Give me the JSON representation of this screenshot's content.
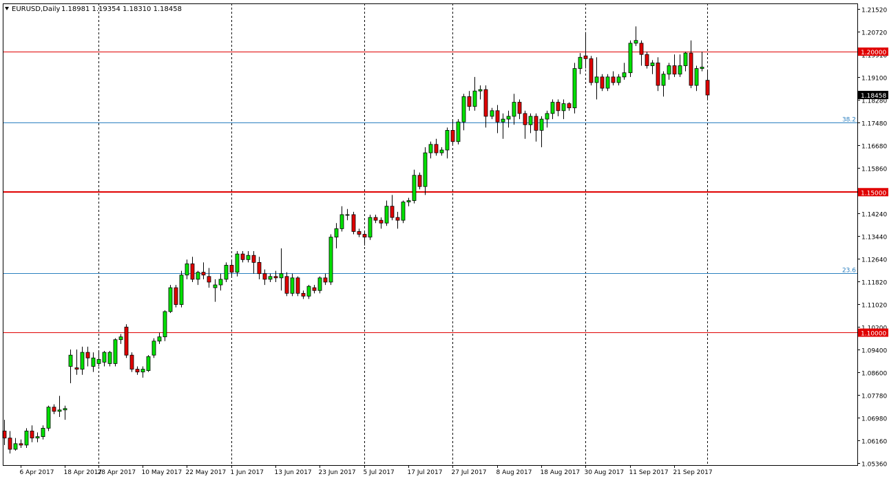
{
  "header": {
    "symbol": "EURUSD,Daily",
    "ohlc": "1.18981 1.19354 1.18310 1.18458"
  },
  "chart_data": {
    "type": "candlestick",
    "symbol": "EURUSD",
    "timeframe": "Daily",
    "ylim": [
      1.0536,
      1.2152
    ],
    "y_ticks": [
      "1.21520",
      "1.20720",
      "1.19910",
      "1.19100",
      "1.18280",
      "1.17480",
      "1.16680",
      "1.15860",
      "1.15060",
      "1.14240",
      "1.13440",
      "1.12640",
      "1.11820",
      "1.11020",
      "1.10200",
      "1.09400",
      "1.08600",
      "1.07780",
      "1.06980",
      "1.06160",
      "1.05360"
    ],
    "x_ticks": [
      "6 Apr 2017",
      "18 Apr 2017",
      "28 Apr 2017",
      "10 May 2017",
      "22 May 2017",
      "1 Jun 2017",
      "13 Jun 2017",
      "23 Jun 2017",
      "5 Jul 2017",
      "17 Jul 2017",
      "27 Jul 2017",
      "8 Aug 2017",
      "18 Aug 2017",
      "30 Aug 2017",
      "11 Sep 2017",
      "21 Sep 2017"
    ],
    "period_separators": [
      "28 Apr 2017",
      "1 Jun 2017",
      "5 Jul 2017",
      "27 Jul 2017",
      "30 Aug 2017",
      "29 Sep 2017"
    ],
    "horizontal_levels": [
      {
        "price": 1.2,
        "label": "1.20000",
        "color": "#e00000",
        "weight": "thin"
      },
      {
        "price": 1.15,
        "label": "1.15000",
        "color": "#e00000",
        "weight": "thick"
      },
      {
        "price": 1.1,
        "label": "1.10000",
        "color": "#e00000",
        "weight": "thin"
      }
    ],
    "fib_levels": [
      {
        "price": 1.1749,
        "label": "38.2",
        "color": "#2a7fbf"
      },
      {
        "price": 1.1213,
        "label": "23.6",
        "color": "#2a7fbf"
      }
    ],
    "current_price": {
      "price": 1.18458,
      "label": "1.18458"
    },
    "colors": {
      "bull": "#00e000",
      "bear": "#e00000",
      "wick": "#000000",
      "grid": "#000000"
    },
    "candles": [
      {
        "date": "2017-04-03",
        "o": 1.065,
        "h": 1.069,
        "l": 1.06,
        "c": 1.0625
      },
      {
        "date": "2017-04-04",
        "o": 1.0625,
        "h": 1.065,
        "l": 1.057,
        "c": 1.0585
      },
      {
        "date": "2017-04-05",
        "o": 1.0585,
        "h": 1.0625,
        "l": 1.058,
        "c": 1.0605
      },
      {
        "date": "2017-04-06",
        "o": 1.0605,
        "h": 1.062,
        "l": 1.059,
        "c": 1.06
      },
      {
        "date": "2017-04-07",
        "o": 1.06,
        "h": 1.066,
        "l": 1.059,
        "c": 1.065
      },
      {
        "date": "2017-04-10",
        "o": 1.065,
        "h": 1.067,
        "l": 1.061,
        "c": 1.0625
      },
      {
        "date": "2017-04-11",
        "o": 1.0625,
        "h": 1.0645,
        "l": 1.061,
        "c": 1.063
      },
      {
        "date": "2017-04-12",
        "o": 1.063,
        "h": 1.067,
        "l": 1.062,
        "c": 1.066
      },
      {
        "date": "2017-04-13",
        "o": 1.066,
        "h": 1.074,
        "l": 1.065,
        "c": 1.0735
      },
      {
        "date": "2017-04-14",
        "o": 1.0735,
        "h": 1.0745,
        "l": 1.071,
        "c": 1.072
      },
      {
        "date": "2017-04-17",
        "o": 1.072,
        "h": 1.0775,
        "l": 1.07,
        "c": 1.0725
      },
      {
        "date": "2017-04-18",
        "o": 1.0725,
        "h": 1.074,
        "l": 1.069,
        "c": 1.073
      },
      {
        "date": "2017-04-21",
        "o": 1.088,
        "h": 1.094,
        "l": 1.082,
        "c": 1.092
      },
      {
        "date": "2017-04-24",
        "o": 1.0875,
        "h": 1.094,
        "l": 1.085,
        "c": 1.087
      },
      {
        "date": "2017-04-25",
        "o": 1.087,
        "h": 1.095,
        "l": 1.085,
        "c": 1.093
      },
      {
        "date": "2017-04-26",
        "o": 1.093,
        "h": 1.095,
        "l": 1.088,
        "c": 1.091
      },
      {
        "date": "2017-04-27",
        "o": 1.088,
        "h": 1.093,
        "l": 1.086,
        "c": 1.091
      },
      {
        "date": "2017-04-28",
        "o": 1.089,
        "h": 1.0935,
        "l": 1.088,
        "c": 1.0905
      },
      {
        "date": "2017-05-01",
        "o": 1.0895,
        "h": 1.0935,
        "l": 1.088,
        "c": 1.093
      },
      {
        "date": "2017-05-02",
        "o": 1.089,
        "h": 1.0935,
        "l": 1.088,
        "c": 1.093
      },
      {
        "date": "2017-05-03",
        "o": 1.089,
        "h": 1.098,
        "l": 1.088,
        "c": 1.0975
      },
      {
        "date": "2017-05-04",
        "o": 1.0975,
        "h": 1.0995,
        "l": 1.096,
        "c": 1.0985
      },
      {
        "date": "2017-05-05",
        "o": 1.102,
        "h": 1.103,
        "l": 1.091,
        "c": 1.092
      },
      {
        "date": "2017-05-08",
        "o": 1.092,
        "h": 1.093,
        "l": 1.086,
        "c": 1.087
      },
      {
        "date": "2017-05-09",
        "o": 1.087,
        "h": 1.088,
        "l": 1.085,
        "c": 1.086
      },
      {
        "date": "2017-05-10",
        "o": 1.086,
        "h": 1.088,
        "l": 1.084,
        "c": 1.087
      },
      {
        "date": "2017-05-11",
        "o": 1.0865,
        "h": 1.092,
        "l": 1.086,
        "c": 1.0915
      },
      {
        "date": "2017-05-12",
        "o": 1.092,
        "h": 1.098,
        "l": 1.091,
        "c": 1.097
      },
      {
        "date": "2017-05-15",
        "o": 1.097,
        "h": 1.1,
        "l": 1.096,
        "c": 1.0985
      },
      {
        "date": "2017-05-16",
        "o": 1.0985,
        "h": 1.108,
        "l": 1.097,
        "c": 1.1075
      },
      {
        "date": "2017-05-17",
        "o": 1.1075,
        "h": 1.117,
        "l": 1.107,
        "c": 1.116
      },
      {
        "date": "2017-05-18",
        "o": 1.116,
        "h": 1.117,
        "l": 1.109,
        "c": 1.11
      },
      {
        "date": "2017-05-19",
        "o": 1.11,
        "h": 1.122,
        "l": 1.109,
        "c": 1.1205
      },
      {
        "date": "2017-05-22",
        "o": 1.1205,
        "h": 1.126,
        "l": 1.119,
        "c": 1.1245
      },
      {
        "date": "2017-05-23",
        "o": 1.1245,
        "h": 1.127,
        "l": 1.118,
        "c": 1.119
      },
      {
        "date": "2017-05-24",
        "o": 1.119,
        "h": 1.122,
        "l": 1.117,
        "c": 1.1215
      },
      {
        "date": "2017-05-25",
        "o": 1.1215,
        "h": 1.125,
        "l": 1.119,
        "c": 1.1205
      },
      {
        "date": "2017-05-26",
        "o": 1.12,
        "h": 1.123,
        "l": 1.116,
        "c": 1.118
      },
      {
        "date": "2017-05-29",
        "o": 1.116,
        "h": 1.119,
        "l": 1.111,
        "c": 1.117
      },
      {
        "date": "2017-05-30",
        "o": 1.117,
        "h": 1.121,
        "l": 1.115,
        "c": 1.119
      },
      {
        "date": "2017-05-31",
        "o": 1.119,
        "h": 1.125,
        "l": 1.118,
        "c": 1.124
      },
      {
        "date": "2017-06-01",
        "o": 1.124,
        "h": 1.126,
        "l": 1.12,
        "c": 1.1215
      },
      {
        "date": "2017-06-02",
        "o": 1.1215,
        "h": 1.129,
        "l": 1.12,
        "c": 1.128
      },
      {
        "date": "2017-06-05",
        "o": 1.128,
        "h": 1.129,
        "l": 1.125,
        "c": 1.126
      },
      {
        "date": "2017-06-06",
        "o": 1.126,
        "h": 1.129,
        "l": 1.125,
        "c": 1.1275
      },
      {
        "date": "2017-06-07",
        "o": 1.1275,
        "h": 1.129,
        "l": 1.121,
        "c": 1.125
      },
      {
        "date": "2017-06-08",
        "o": 1.125,
        "h": 1.127,
        "l": 1.119,
        "c": 1.121
      },
      {
        "date": "2017-06-09",
        "o": 1.121,
        "h": 1.1225,
        "l": 1.117,
        "c": 1.119
      },
      {
        "date": "2017-06-12",
        "o": 1.119,
        "h": 1.121,
        "l": 1.118,
        "c": 1.12
      },
      {
        "date": "2017-06-13",
        "o": 1.12,
        "h": 1.122,
        "l": 1.118,
        "c": 1.1195
      },
      {
        "date": "2017-06-14",
        "o": 1.1195,
        "h": 1.13,
        "l": 1.115,
        "c": 1.121
      },
      {
        "date": "2017-06-15",
        "o": 1.12,
        "h": 1.1215,
        "l": 1.113,
        "c": 1.114
      },
      {
        "date": "2017-06-16",
        "o": 1.114,
        "h": 1.121,
        "l": 1.113,
        "c": 1.1195
      },
      {
        "date": "2017-06-19",
        "o": 1.1195,
        "h": 1.12,
        "l": 1.113,
        "c": 1.114
      },
      {
        "date": "2017-06-20",
        "o": 1.114,
        "h": 1.115,
        "l": 1.112,
        "c": 1.113
      },
      {
        "date": "2017-06-21",
        "o": 1.113,
        "h": 1.117,
        "l": 1.112,
        "c": 1.1165
      },
      {
        "date": "2017-06-22",
        "o": 1.116,
        "h": 1.117,
        "l": 1.114,
        "c": 1.115
      },
      {
        "date": "2017-06-23",
        "o": 1.115,
        "h": 1.12,
        "l": 1.114,
        "c": 1.1195
      },
      {
        "date": "2017-06-26",
        "o": 1.1195,
        "h": 1.121,
        "l": 1.117,
        "c": 1.118
      },
      {
        "date": "2017-06-27",
        "o": 1.118,
        "h": 1.135,
        "l": 1.117,
        "c": 1.134
      },
      {
        "date": "2017-06-28",
        "o": 1.134,
        "h": 1.139,
        "l": 1.13,
        "c": 1.137
      },
      {
        "date": "2017-06-29",
        "o": 1.137,
        "h": 1.145,
        "l": 1.136,
        "c": 1.142
      },
      {
        "date": "2017-06-30",
        "o": 1.142,
        "h": 1.144,
        "l": 1.14,
        "c": 1.142
      },
      {
        "date": "2017-07-03",
        "o": 1.142,
        "h": 1.143,
        "l": 1.135,
        "c": 1.136
      },
      {
        "date": "2017-07-04",
        "o": 1.136,
        "h": 1.137,
        "l": 1.134,
        "c": 1.135
      },
      {
        "date": "2017-07-05",
        "o": 1.135,
        "h": 1.136,
        "l": 1.131,
        "c": 1.134
      },
      {
        "date": "2017-07-06",
        "o": 1.134,
        "h": 1.142,
        "l": 1.133,
        "c": 1.141
      },
      {
        "date": "2017-07-07",
        "o": 1.141,
        "h": 1.142,
        "l": 1.139,
        "c": 1.14
      },
      {
        "date": "2017-07-10",
        "o": 1.14,
        "h": 1.141,
        "l": 1.137,
        "c": 1.139
      },
      {
        "date": "2017-07-11",
        "o": 1.139,
        "h": 1.147,
        "l": 1.138,
        "c": 1.145
      },
      {
        "date": "2017-07-12",
        "o": 1.145,
        "h": 1.149,
        "l": 1.14,
        "c": 1.141
      },
      {
        "date": "2017-07-13",
        "o": 1.141,
        "h": 1.143,
        "l": 1.137,
        "c": 1.14
      },
      {
        "date": "2017-07-14",
        "o": 1.14,
        "h": 1.147,
        "l": 1.139,
        "c": 1.1465
      },
      {
        "date": "2017-07-17",
        "o": 1.1465,
        "h": 1.148,
        "l": 1.145,
        "c": 1.147
      },
      {
        "date": "2017-07-18",
        "o": 1.147,
        "h": 1.158,
        "l": 1.146,
        "c": 1.156
      },
      {
        "date": "2017-07-19",
        "o": 1.156,
        "h": 1.157,
        "l": 1.151,
        "c": 1.152
      },
      {
        "date": "2017-07-20",
        "o": 1.152,
        "h": 1.166,
        "l": 1.149,
        "c": 1.164
      },
      {
        "date": "2017-07-21",
        "o": 1.164,
        "h": 1.168,
        "l": 1.162,
        "c": 1.167
      },
      {
        "date": "2017-07-24",
        "o": 1.167,
        "h": 1.169,
        "l": 1.163,
        "c": 1.164
      },
      {
        "date": "2017-07-25",
        "o": 1.164,
        "h": 1.166,
        "l": 1.163,
        "c": 1.165
      },
      {
        "date": "2017-07-26",
        "o": 1.165,
        "h": 1.173,
        "l": 1.162,
        "c": 1.172
      },
      {
        "date": "2017-07-27",
        "o": 1.172,
        "h": 1.176,
        "l": 1.167,
        "c": 1.168
      },
      {
        "date": "2017-07-28",
        "o": 1.168,
        "h": 1.176,
        "l": 1.167,
        "c": 1.175
      },
      {
        "date": "2017-07-31",
        "o": 1.175,
        "h": 1.185,
        "l": 1.172,
        "c": 1.184
      },
      {
        "date": "2017-08-01",
        "o": 1.184,
        "h": 1.186,
        "l": 1.179,
        "c": 1.1805
      },
      {
        "date": "2017-08-02",
        "o": 1.1805,
        "h": 1.191,
        "l": 1.179,
        "c": 1.186
      },
      {
        "date": "2017-08-03",
        "o": 1.186,
        "h": 1.188,
        "l": 1.183,
        "c": 1.1865
      },
      {
        "date": "2017-08-04",
        "o": 1.1865,
        "h": 1.188,
        "l": 1.173,
        "c": 1.177
      },
      {
        "date": "2017-08-07",
        "o": 1.177,
        "h": 1.18,
        "l": 1.176,
        "c": 1.179
      },
      {
        "date": "2017-08-08",
        "o": 1.179,
        "h": 1.181,
        "l": 1.171,
        "c": 1.175
      },
      {
        "date": "2017-08-09",
        "o": 1.175,
        "h": 1.178,
        "l": 1.169,
        "c": 1.176
      },
      {
        "date": "2017-08-10",
        "o": 1.176,
        "h": 1.179,
        "l": 1.173,
        "c": 1.177
      },
      {
        "date": "2017-08-11",
        "o": 1.177,
        "h": 1.185,
        "l": 1.174,
        "c": 1.182
      },
      {
        "date": "2017-08-14",
        "o": 1.182,
        "h": 1.183,
        "l": 1.176,
        "c": 1.178
      },
      {
        "date": "2017-08-15",
        "o": 1.178,
        "h": 1.179,
        "l": 1.169,
        "c": 1.174
      },
      {
        "date": "2017-08-16",
        "o": 1.174,
        "h": 1.178,
        "l": 1.171,
        "c": 1.177
      },
      {
        "date": "2017-08-17",
        "o": 1.177,
        "h": 1.178,
        "l": 1.168,
        "c": 1.172
      },
      {
        "date": "2017-08-18",
        "o": 1.172,
        "h": 1.177,
        "l": 1.166,
        "c": 1.176
      },
      {
        "date": "2017-08-21",
        "o": 1.176,
        "h": 1.179,
        "l": 1.173,
        "c": 1.178
      },
      {
        "date": "2017-08-22",
        "o": 1.178,
        "h": 1.183,
        "l": 1.176,
        "c": 1.182
      },
      {
        "date": "2017-08-23",
        "o": 1.182,
        "h": 1.183,
        "l": 1.177,
        "c": 1.179
      },
      {
        "date": "2017-08-24",
        "o": 1.179,
        "h": 1.183,
        "l": 1.176,
        "c": 1.1815
      },
      {
        "date": "2017-08-25",
        "o": 1.1815,
        "h": 1.182,
        "l": 1.179,
        "c": 1.18
      },
      {
        "date": "2017-08-28",
        "o": 1.18,
        "h": 1.196,
        "l": 1.178,
        "c": 1.194
      },
      {
        "date": "2017-08-29",
        "o": 1.194,
        "h": 1.1995,
        "l": 1.192,
        "c": 1.198
      },
      {
        "date": "2017-08-30",
        "o": 1.1985,
        "h": 1.207,
        "l": 1.194,
        "c": 1.1975
      },
      {
        "date": "2017-08-31",
        "o": 1.1975,
        "h": 1.1985,
        "l": 1.188,
        "c": 1.189
      },
      {
        "date": "2017-09-01",
        "o": 1.189,
        "h": 1.198,
        "l": 1.183,
        "c": 1.191
      },
      {
        "date": "2017-09-04",
        "o": 1.191,
        "h": 1.192,
        "l": 1.186,
        "c": 1.187
      },
      {
        "date": "2017-09-05",
        "o": 1.187,
        "h": 1.192,
        "l": 1.186,
        "c": 1.191
      },
      {
        "date": "2017-09-06",
        "o": 1.191,
        "h": 1.193,
        "l": 1.188,
        "c": 1.189
      },
      {
        "date": "2017-09-07",
        "o": 1.189,
        "h": 1.192,
        "l": 1.188,
        "c": 1.191
      },
      {
        "date": "2017-09-08",
        "o": 1.191,
        "h": 1.196,
        "l": 1.19,
        "c": 1.1925
      },
      {
        "date": "2017-09-11",
        "o": 1.1925,
        "h": 1.204,
        "l": 1.191,
        "c": 1.203
      },
      {
        "date": "2017-09-12",
        "o": 1.203,
        "h": 1.209,
        "l": 1.202,
        "c": 1.204
      },
      {
        "date": "2017-09-13",
        "o": 1.203,
        "h": 1.204,
        "l": 1.195,
        "c": 1.199
      },
      {
        "date": "2017-09-14",
        "o": 1.199,
        "h": 1.2,
        "l": 1.194,
        "c": 1.195
      },
      {
        "date": "2017-09-15",
        "o": 1.195,
        "h": 1.197,
        "l": 1.192,
        "c": 1.196
      },
      {
        "date": "2017-09-18",
        "o": 1.196,
        "h": 1.198,
        "l": 1.186,
        "c": 1.188
      },
      {
        "date": "2017-09-19",
        "o": 1.188,
        "h": 1.193,
        "l": 1.184,
        "c": 1.192
      },
      {
        "date": "2017-09-20",
        "o": 1.192,
        "h": 1.196,
        "l": 1.19,
        "c": 1.195
      },
      {
        "date": "2017-09-21",
        "o": 1.195,
        "h": 1.199,
        "l": 1.191,
        "c": 1.192
      },
      {
        "date": "2017-09-22",
        "o": 1.192,
        "h": 1.199,
        "l": 1.191,
        "c": 1.195
      },
      {
        "date": "2017-09-25",
        "o": 1.195,
        "h": 1.2,
        "l": 1.193,
        "c": 1.1995
      },
      {
        "date": "2017-09-26",
        "o": 1.1995,
        "h": 1.204,
        "l": 1.187,
        "c": 1.188
      },
      {
        "date": "2017-09-27",
        "o": 1.188,
        "h": 1.195,
        "l": 1.186,
        "c": 1.194
      },
      {
        "date": "2017-09-28",
        "o": 1.194,
        "h": 1.2,
        "l": 1.193,
        "c": 1.1945
      },
      {
        "date": "2017-09-29",
        "o": 1.18981,
        "h": 1.19354,
        "l": 1.1831,
        "c": 1.18458
      }
    ]
  }
}
